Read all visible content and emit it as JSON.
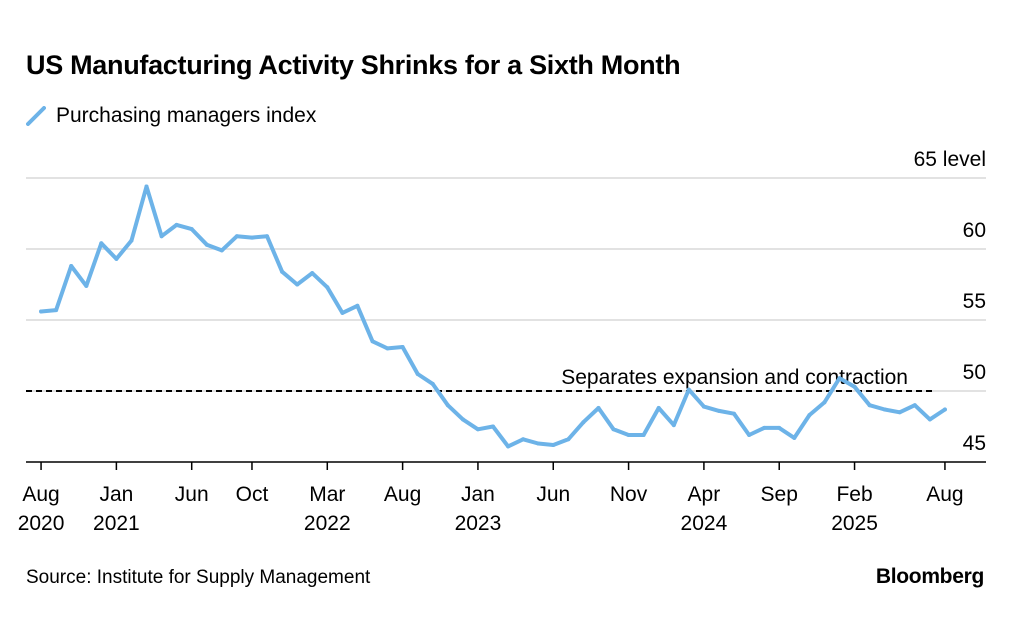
{
  "title": "US Manufacturing Activity Shrinks for a Sixth Month",
  "source": "Source: Institute for Supply Management",
  "brand": "Bloomberg",
  "colors": {
    "series": "#6db3e8",
    "grid": "#d9d9d9",
    "axis": "#000000",
    "reference": "#000000"
  },
  "chart_data": {
    "type": "line",
    "title": "US Manufacturing Activity Shrinks for a Sixth Month",
    "xlabel": "",
    "ylabel": "",
    "ylim": [
      45,
      65
    ],
    "y_ticks": [
      {
        "value": 45,
        "label": "45"
      },
      {
        "value": 50,
        "label": "50"
      },
      {
        "value": 55,
        "label": "55"
      },
      {
        "value": 60,
        "label": "60"
      },
      {
        "value": 65,
        "label": "65 level"
      }
    ],
    "x_range": [
      "2020-07",
      "2025-09"
    ],
    "x_ticks": [
      {
        "date": "2020-08",
        "label": "Aug",
        "year": "2020"
      },
      {
        "date": "2021-01",
        "label": "Jan",
        "year": "2021"
      },
      {
        "date": "2021-06",
        "label": "Jun",
        "year": ""
      },
      {
        "date": "2021-10",
        "label": "Oct",
        "year": ""
      },
      {
        "date": "2022-03",
        "label": "Mar",
        "year": "2022"
      },
      {
        "date": "2022-08",
        "label": "Aug",
        "year": ""
      },
      {
        "date": "2023-01",
        "label": "Jan",
        "year": "2023"
      },
      {
        "date": "2023-06",
        "label": "Jun",
        "year": ""
      },
      {
        "date": "2023-11",
        "label": "Nov",
        "year": ""
      },
      {
        "date": "2024-04",
        "label": "Apr",
        "year": "2024"
      },
      {
        "date": "2024-09",
        "label": "Sep",
        "year": ""
      },
      {
        "date": "2025-02",
        "label": "Feb",
        "year": "2025"
      },
      {
        "date": "2025-08",
        "label": "Aug",
        "year": ""
      }
    ],
    "grid": true,
    "legend": "top-left",
    "reference_line": {
      "value": 50,
      "label": "Separates expansion and contraction"
    },
    "series": [
      {
        "name": "Purchasing managers index",
        "x": [
          "2020-08",
          "2020-09",
          "2020-10",
          "2020-11",
          "2020-12",
          "2021-01",
          "2021-02",
          "2021-03",
          "2021-04",
          "2021-05",
          "2021-06",
          "2021-07",
          "2021-08",
          "2021-09",
          "2021-10",
          "2021-11",
          "2021-12",
          "2022-01",
          "2022-02",
          "2022-03",
          "2022-04",
          "2022-05",
          "2022-06",
          "2022-07",
          "2022-08",
          "2022-09",
          "2022-10",
          "2022-11",
          "2022-12",
          "2023-01",
          "2023-02",
          "2023-03",
          "2023-04",
          "2023-05",
          "2023-06",
          "2023-07",
          "2023-08",
          "2023-09",
          "2023-10",
          "2023-11",
          "2023-12",
          "2024-01",
          "2024-02",
          "2024-03",
          "2024-04",
          "2024-05",
          "2024-06",
          "2024-07",
          "2024-08",
          "2024-09",
          "2024-10",
          "2024-11",
          "2024-12",
          "2025-01",
          "2025-02",
          "2025-03",
          "2025-04",
          "2025-05",
          "2025-06",
          "2025-07",
          "2025-08"
        ],
        "values": [
          55.6,
          55.7,
          58.8,
          57.4,
          60.4,
          59.3,
          60.6,
          64.4,
          60.9,
          61.7,
          61.4,
          60.3,
          59.9,
          60.9,
          60.8,
          60.9,
          58.4,
          57.5,
          58.3,
          57.3,
          55.5,
          56.0,
          53.5,
          53.0,
          53.1,
          51.2,
          50.5,
          49.0,
          48.0,
          47.3,
          47.5,
          46.1,
          46.6,
          46.3,
          46.2,
          46.6,
          47.8,
          48.8,
          47.3,
          46.9,
          46.9,
          48.8,
          47.6,
          50.1,
          48.9,
          48.6,
          48.4,
          46.9,
          47.4,
          47.4,
          46.7,
          48.3,
          49.2,
          50.9,
          50.3,
          49.0,
          48.7,
          48.5,
          49.0,
          48.0,
          48.7
        ]
      }
    ]
  }
}
